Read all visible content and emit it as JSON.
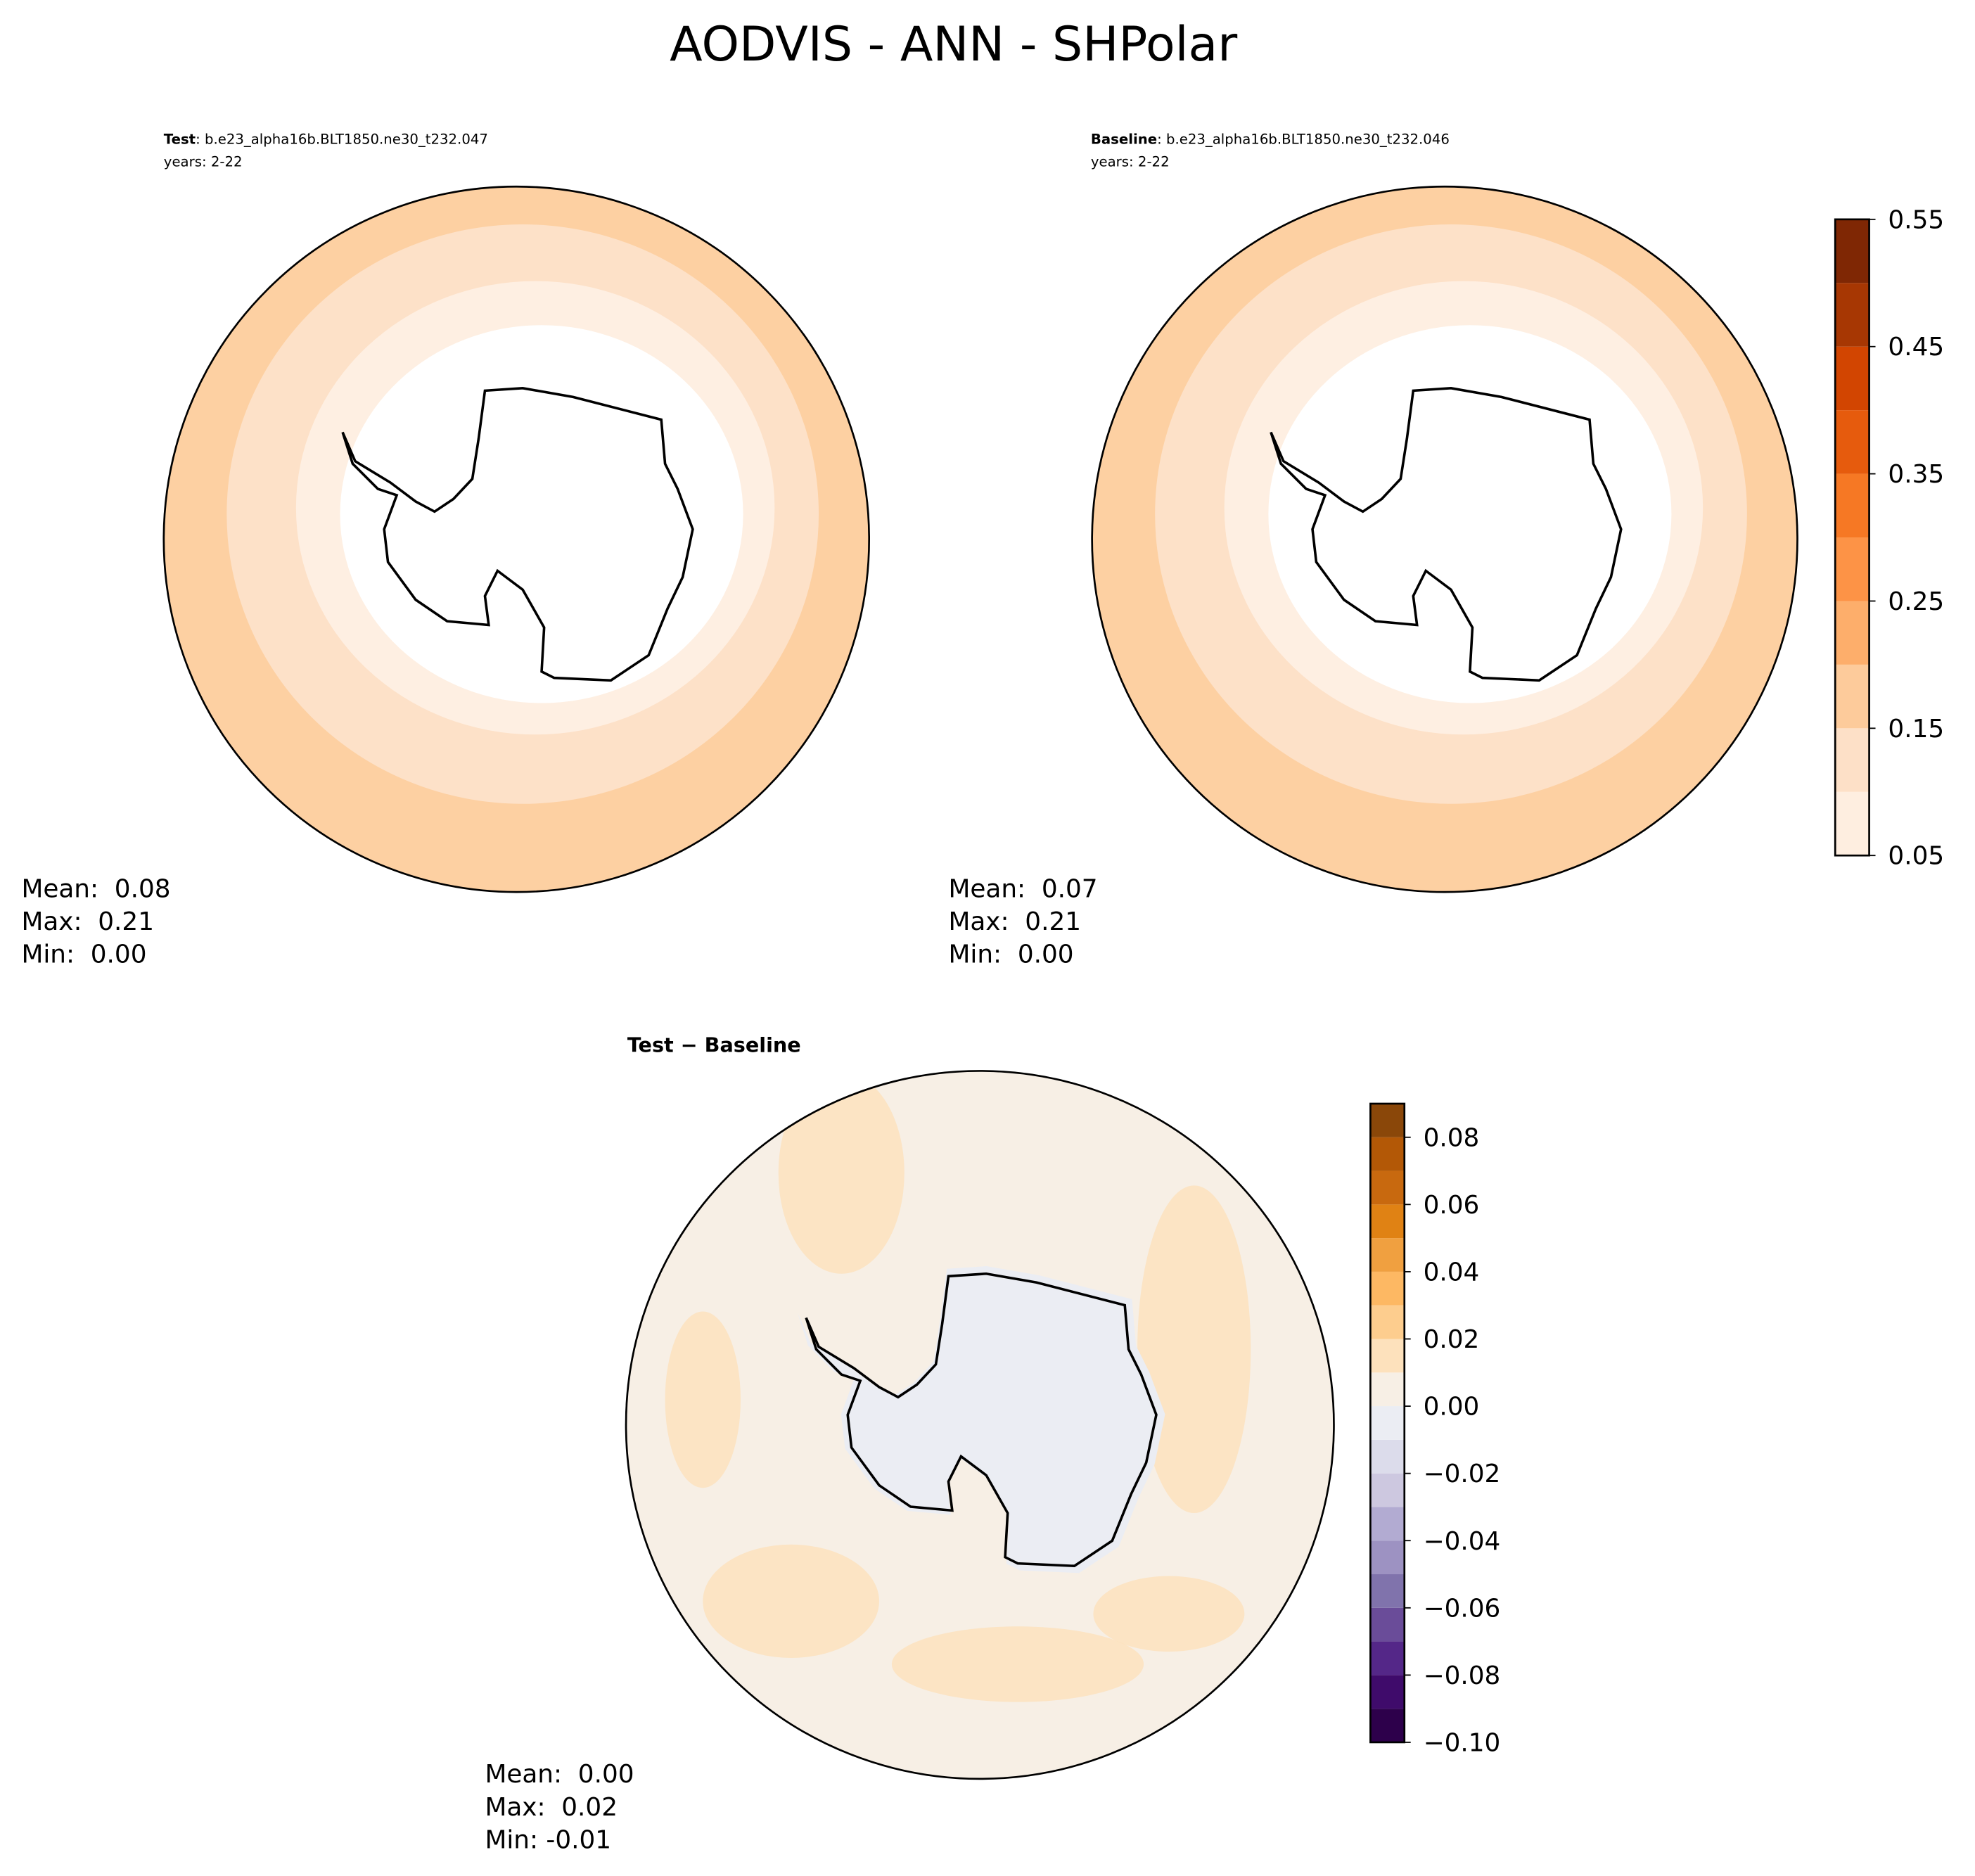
{
  "title": "AODVIS - ANN - SHPolar",
  "panels": [
    {
      "label": "Test",
      "case": ": b.e23_alpha16b.BLT1850.ne30_t232.047",
      "years": "years: 2-22",
      "stats": [
        "Mean:  0.08",
        "Max:  0.21",
        "Min:  0.00"
      ]
    },
    {
      "label": "Baseline",
      "case": ": b.e23_alpha16b.BLT1850.ne30_t232.046",
      "years": "years: 2-22",
      "stats": [
        "Mean:  0.07",
        "Max:  0.21",
        "Min:  0.00"
      ]
    },
    {
      "label": "Test − Baseline",
      "stats": [
        "Mean:  0.00",
        "Max:  0.02",
        "Min: -0.01"
      ]
    }
  ],
  "colorbars": [
    {
      "lim": [
        0.05,
        0.55
      ],
      "ticks": [
        0.05,
        0.15,
        0.25,
        0.35,
        0.45,
        0.55
      ],
      "levels": [
        0.05,
        0.1,
        0.15,
        0.2,
        0.25,
        0.3,
        0.35,
        0.4,
        0.45,
        0.5,
        0.55
      ],
      "colors": [
        "#feeee0",
        "#fde0c7",
        "#fdcb9b",
        "#fdae6b",
        "#fd9346",
        "#f67824",
        "#e65b0d",
        "#d24501",
        "#a73703",
        "#7f2704"
      ]
    },
    {
      "lim": [
        -0.1,
        0.09
      ],
      "ticks": [
        {
          "value": -0.1,
          "label": "−0.10"
        },
        {
          "value": -0.08,
          "label": "−0.08"
        },
        {
          "value": -0.06,
          "label": "−0.06"
        },
        {
          "value": -0.04,
          "label": "−0.04"
        },
        {
          "value": -0.02,
          "label": "−0.02"
        },
        {
          "value": 0,
          "label": "0.00"
        },
        0.02,
        0.04,
        0.06,
        0.08
      ],
      "levels": [
        -0.1,
        -0.09,
        -0.08,
        -0.07,
        -0.06,
        -0.05,
        -0.04,
        -0.03,
        -0.02,
        -0.01,
        0,
        0.01,
        0.02,
        0.03,
        0.04,
        0.05,
        0.06,
        0.07,
        0.08,
        0.09
      ],
      "colors": [
        "#2d004b",
        "#3f0b6b",
        "#542788",
        "#6a4c99",
        "#8073ac",
        "#9d92c2",
        "#b2abd2",
        "#cdc8e0",
        "#dcdceb",
        "#ebedf3",
        "#f7efe5",
        "#fde1bc",
        "#fdcd8e",
        "#fdb863",
        "#f0a040",
        "#e08214",
        "#c8690f",
        "#b35806",
        "#8a4709"
      ]
    }
  ]
}
